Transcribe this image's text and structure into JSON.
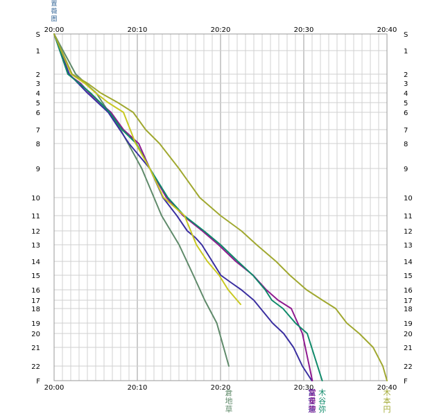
{
  "chart_data": {
    "type": "line",
    "title": "",
    "header_label": "置薇圏",
    "x_ticks": [
      "20:00",
      "20:10",
      "20:20",
      "20:30",
      "20:40"
    ],
    "xlim": [
      "20:00",
      "20:40"
    ],
    "y_labels": [
      "S",
      "1",
      "2",
      "3",
      "4",
      "5",
      "6",
      "7",
      "8",
      "9",
      "10",
      "11",
      "12",
      "13",
      "14",
      "15",
      "16",
      "17",
      "18",
      "19",
      "20",
      "21",
      "22",
      "F"
    ],
    "grid": true,
    "series": [
      {
        "name": "倉地草",
        "color": "#5f8a6a",
        "x": [
          "20:00:00",
          "20:02:36",
          "20:05:03",
          "20:07:59",
          "20:10:32",
          "20:12:55",
          "20:15:01",
          "20:16:44",
          "20:18:06",
          "20:19:33",
          "20:21:00"
        ],
        "y": [
          0,
          2,
          4,
          7,
          9,
          11,
          13,
          15,
          17,
          19,
          22
        ]
      },
      {
        "name": "富安蓮",
        "color": "#3a2fa0",
        "x": [
          "20:00:00",
          "20:01:50",
          "20:04:00",
          "20:06:30",
          "20:09:00",
          "20:11:30",
          "20:13:05",
          "20:14:45",
          "20:16:00",
          "20:17:00",
          "20:17:45",
          "20:19:00",
          "20:20:02",
          "20:21:15",
          "20:22:30",
          "20:24:00",
          "20:26:15",
          "20:27:35",
          "20:28:46",
          "20:29:50",
          "20:30:58"
        ],
        "y": [
          0,
          2,
          4,
          6,
          8,
          9,
          10,
          11,
          12,
          12.5,
          13,
          14,
          15,
          15.5,
          16,
          17,
          19,
          20,
          21,
          22,
          23
        ]
      },
      {
        "name": "堂垂惣",
        "color": "#8f1a8f",
        "x": [
          "20:00:00",
          "20:01:40",
          "20:03:10",
          "20:04:15",
          "20:05:30",
          "20:06:50",
          "20:08:20",
          "20:10:10",
          "20:11:30",
          "20:13:30",
          "20:15:30",
          "20:17:48",
          "20:19:45",
          "20:21:50",
          "20:23:55",
          "20:25:30",
          "20:26:55",
          "20:28:30",
          "20:29:50",
          "20:31:02"
        ],
        "y": [
          0,
          2,
          3,
          4,
          5,
          6,
          7,
          8,
          9,
          10,
          11,
          12,
          13,
          14,
          15,
          16,
          17,
          18,
          20,
          23
        ]
      },
      {
        "name": "木谷弥",
        "color": "#0f8a6a",
        "x": [
          "20:00:00",
          "20:01:40",
          "20:03:00",
          "20:04:22",
          "20:05:33",
          "20:06:40",
          "20:08:10",
          "20:09:53",
          "20:11:30",
          "20:13:40",
          "20:15:38",
          "20:18:00",
          "20:20:00",
          "20:22:05",
          "20:23:53",
          "20:25:22",
          "20:26:10",
          "20:27:30",
          "20:29:00",
          "20:30:25",
          "20:32:13"
        ],
        "y": [
          0,
          2,
          3,
          4,
          5,
          6,
          7,
          8,
          9,
          10,
          11,
          12,
          13,
          14,
          15,
          16,
          17,
          18,
          19,
          20,
          23
        ]
      },
      {
        "name": "",
        "color": "#c8c820",
        "x": [
          "20:00:00",
          "20:02:04",
          "20:03:40",
          "20:05:00",
          "20:06:30",
          "20:08:20",
          "20:09:48",
          "20:11:30",
          "20:13:09",
          "20:15:40",
          "20:17:06",
          "20:18:25",
          "20:19:50",
          "20:20:55",
          "20:22:25"
        ],
        "y": [
          0,
          2,
          3,
          4,
          5,
          6,
          8,
          9,
          10,
          11,
          13,
          14,
          15,
          16,
          17.5
        ]
      },
      {
        "name": "木本円",
        "color": "#a0a830",
        "x": [
          "20:00:00",
          "20:02:10",
          "20:04:00",
          "20:05:35",
          "20:07:40",
          "20:09:30",
          "20:11:00",
          "20:12:40",
          "20:15:00",
          "20:17:30",
          "20:20:00",
          "20:22:30",
          "20:24:20",
          "20:26:40",
          "20:28:20",
          "20:30:20",
          "20:32:15",
          "20:33:50",
          "20:35:10",
          "20:36:40",
          "20:38:20",
          "20:39:30",
          "20:40:00"
        ],
        "y": [
          0,
          2,
          3,
          4,
          5,
          6,
          7,
          8,
          9,
          10,
          11,
          12,
          13,
          14,
          15,
          16,
          17,
          18,
          19,
          20,
          21,
          22,
          23
        ]
      }
    ]
  }
}
